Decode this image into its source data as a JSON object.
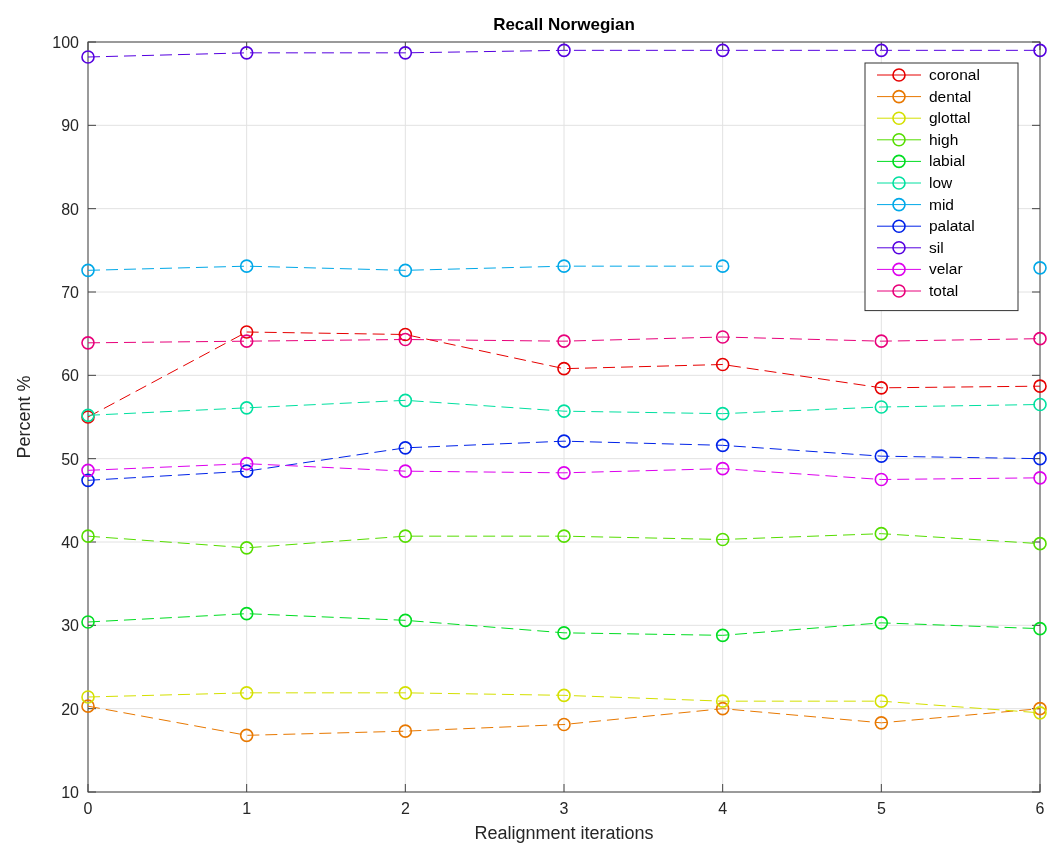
{
  "chart_data": {
    "type": "line",
    "title": "Recall Norwegian",
    "xlabel": "Realignment iterations",
    "ylabel": "Percent %",
    "x": [
      0,
      1,
      2,
      3,
      4,
      5,
      6
    ],
    "xlim": [
      0,
      6
    ],
    "xticks": [
      0,
      1,
      2,
      3,
      4,
      5,
      6
    ],
    "ylim": [
      10,
      100
    ],
    "yticks": [
      10,
      20,
      30,
      40,
      50,
      60,
      70,
      80,
      90,
      100
    ],
    "grid": true,
    "legend": "top right",
    "marker": "circle",
    "line_style": "dashed",
    "series": [
      {
        "name": "coronal",
        "color": "#e60000",
        "values": [
          55.0,
          65.2,
          64.9,
          60.8,
          61.3,
          58.5,
          58.7
        ]
      },
      {
        "name": "dental",
        "color": "#e87800",
        "values": [
          20.3,
          16.8,
          17.3,
          18.1,
          20.0,
          18.3,
          20.0
        ]
      },
      {
        "name": "glottal",
        "color": "#d4e000",
        "values": [
          21.4,
          21.9,
          21.9,
          21.6,
          20.9,
          20.9,
          19.5
        ]
      },
      {
        "name": "high",
        "color": "#55dd00",
        "values": [
          40.7,
          39.3,
          40.7,
          40.7,
          40.3,
          41.0,
          39.8
        ]
      },
      {
        "name": "labial",
        "color": "#00dd22",
        "values": [
          30.4,
          31.4,
          30.6,
          29.1,
          28.8,
          30.3,
          29.6
        ]
      },
      {
        "name": "low",
        "color": "#00e0a0",
        "values": [
          55.2,
          56.1,
          57.0,
          55.7,
          55.4,
          56.2,
          56.5
        ]
      },
      {
        "name": "mid",
        "color": "#00a8e8",
        "values": [
          72.6,
          73.1,
          72.6,
          73.1,
          73.1,
          null,
          72.9
        ]
      },
      {
        "name": "palatal",
        "color": "#0022e8",
        "values": [
          47.4,
          48.5,
          51.3,
          52.1,
          51.6,
          50.3,
          50.0
        ]
      },
      {
        "name": "sil",
        "color": "#5500e0",
        "values": [
          98.2,
          98.7,
          98.7,
          99.0,
          99.0,
          99.0,
          99.0
        ]
      },
      {
        "name": "velar",
        "color": "#dd00ee",
        "values": [
          48.6,
          49.4,
          48.5,
          48.3,
          48.8,
          47.5,
          47.7
        ]
      },
      {
        "name": "total",
        "color": "#e8007a",
        "values": [
          63.9,
          64.1,
          64.3,
          64.1,
          64.6,
          64.1,
          64.4
        ]
      }
    ]
  }
}
